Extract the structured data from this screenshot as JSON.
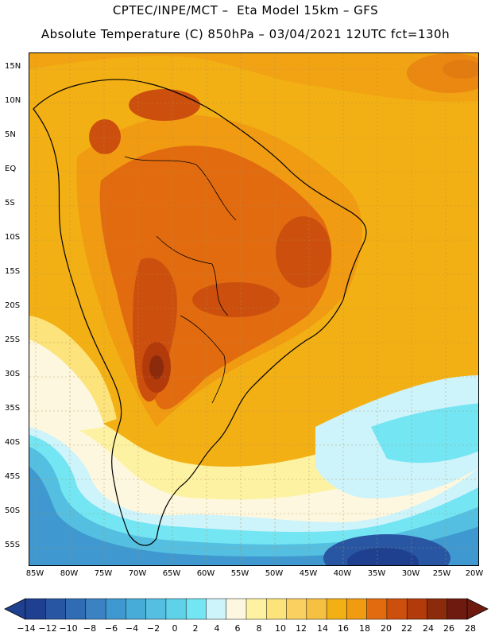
{
  "header": {
    "line1": "CPTEC/INPE/MCT –  Eta Model 15km – GFS",
    "line2": "Absolute Temperature (C) 850hPa – 03/04/2021 12UTC fct=130h"
  },
  "axes": {
    "lat_labels": [
      "15N",
      "10N",
      "5N",
      "EQ",
      "5S",
      "10S",
      "15S",
      "20S",
      "25S",
      "30S",
      "35S",
      "40S",
      "45S",
      "50S",
      "55S"
    ],
    "lon_labels": [
      "85W",
      "80W",
      "75W",
      "70W",
      "65W",
      "60W",
      "55W",
      "50W",
      "45W",
      "40W",
      "35W",
      "30W",
      "25W",
      "20W"
    ],
    "lat_range": [
      -58,
      17
    ],
    "lon_range": [
      -86,
      -20
    ],
    "gridlines": true
  },
  "colorbar": {
    "labels": [
      "−14",
      "−12",
      "−10",
      "−8",
      "−6",
      "−4",
      "−2",
      "0",
      "2",
      "4",
      "6",
      "8",
      "10",
      "12",
      "14",
      "16",
      "18",
      "20",
      "22",
      "24",
      "26",
      "28"
    ],
    "colors": [
      "#1f3f8f",
      "#2856a3",
      "#2f6cb3",
      "#3b82c2",
      "#3f98cf",
      "#48acd9",
      "#54bfe1",
      "#5fd2ea",
      "#74e5f2",
      "#cdf3fb",
      "#fdf7df",
      "#fdf2a2",
      "#fce37b",
      "#fad060",
      "#f6c043",
      "#f3b014",
      "#f09b12",
      "#e26b0f",
      "#cd4f0e",
      "#b23a0b",
      "#8c2b0c",
      "#6e1a0f"
    ]
  },
  "regions": [
    {
      "name": "high-plateau-core",
      "color": "#b23a0b"
    },
    {
      "name": "gran-chaco-core",
      "color": "#cd4f0e"
    },
    {
      "name": "northeast-brazil-core",
      "color": "#cd4f0e"
    },
    {
      "name": "caribbean-core",
      "color": "#cd4f0e"
    },
    {
      "name": "south-atlantic-cold",
      "color": "#1f3f8f"
    }
  ]
}
